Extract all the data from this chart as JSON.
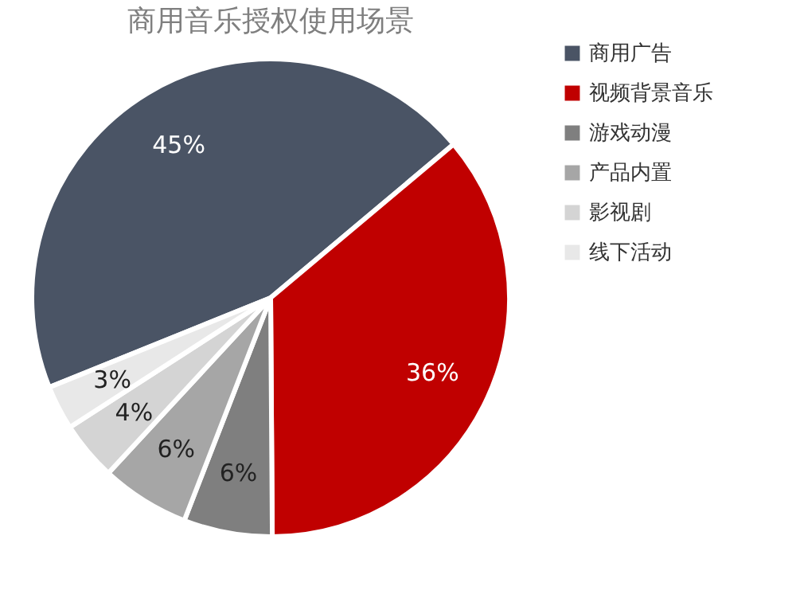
{
  "chart_data": {
    "type": "pie",
    "title": "商用音乐授权使用场景",
    "categories": [
      "商用广告",
      "视频背景音乐",
      "游戏动漫",
      "产品内置",
      "影视剧",
      "线下活动"
    ],
    "values": [
      45,
      36,
      6,
      6,
      4,
      3
    ],
    "value_labels": [
      "45%",
      "36%",
      "6%",
      "6%",
      "4%",
      "3%"
    ],
    "colors": [
      "#4a5465",
      "#c00000",
      "#7f7f7f",
      "#a6a6a6",
      "#d4d4d4",
      "#e8e8e8"
    ],
    "legend": "right"
  }
}
